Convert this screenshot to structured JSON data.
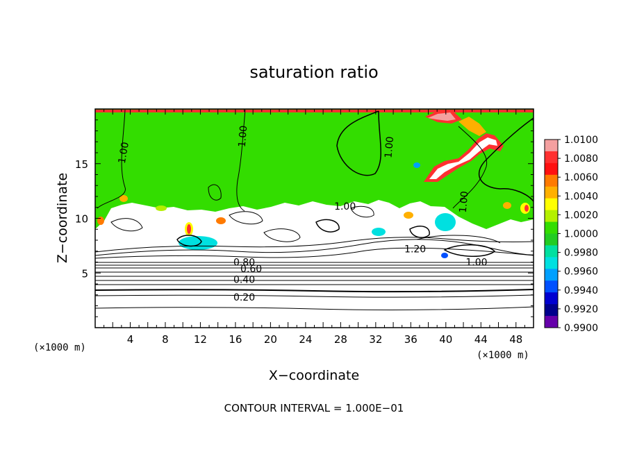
{
  "chart_data": {
    "type": "heatmap",
    "title": "saturation ratio",
    "xlabel": "X−coordinate",
    "ylabel": "Z−coordinate",
    "x_unit_label": "(×1000 m)",
    "y_unit_label": "(×1000 m)",
    "xlim": [
      0,
      50
    ],
    "ylim": [
      0,
      20
    ],
    "x_ticks": [
      4,
      8,
      12,
      16,
      20,
      24,
      28,
      32,
      36,
      40,
      44,
      48
    ],
    "y_ticks": [
      5,
      10,
      15
    ],
    "footer": "CONTOUR INTERVAL = 1.000E−01",
    "colorbar": {
      "labels": [
        "1.0100",
        "1.0080",
        "1.0060",
        "1.0040",
        "1.0020",
        "1.0000",
        "0.9980",
        "0.9960",
        "0.9940",
        "0.9920",
        "0.9900"
      ],
      "colors": [
        "#f4a0a0",
        "#ff3030",
        "#ff1010",
        "#ff7a00",
        "#ffb000",
        "#ffff00",
        "#b4f000",
        "#33dd00",
        "#22cc22",
        "#00e0a0",
        "#00e0e0",
        "#00a0ff",
        "#0050ff",
        "#0000d0",
        "#00008c",
        "#6600aa"
      ]
    },
    "contour_labels": [
      {
        "text": "1.00",
        "x": 3.2,
        "z": 16.0,
        "rotate": -80
      },
      {
        "text": "1.00",
        "x": 16.8,
        "z": 17.5,
        "rotate": -85
      },
      {
        "text": "1.00",
        "x": 33.5,
        "z": 16.5,
        "rotate": -85
      },
      {
        "text": "1.00",
        "x": 28.5,
        "z": 11.1,
        "rotate": 0
      },
      {
        "text": "1.00",
        "x": 42.0,
        "z": 11.5,
        "rotate": -85
      },
      {
        "text": "1.20",
        "x": 36.5,
        "z": 7.2,
        "rotate": 0
      },
      {
        "text": "1.00",
        "x": 43.5,
        "z": 6.0,
        "rotate": 0
      },
      {
        "text": "0.80",
        "x": 17.0,
        "z": 6.0,
        "rotate": 0
      },
      {
        "text": "0.60",
        "x": 17.8,
        "z": 5.4,
        "rotate": 0
      },
      {
        "text": "0.40",
        "x": 17.0,
        "z": 4.4,
        "rotate": 0
      },
      {
        "text": "0.20",
        "x": 17.0,
        "z": 2.8,
        "rotate": 0
      }
    ],
    "regions": {
      "green_saturated_from_z": 10.5,
      "white_supersaturated_z": [
        6.5,
        10.5
      ],
      "stratified_below_z": 6.5
    },
    "colors": {
      "field": "#33dd00",
      "frame": "#000000",
      "contour": "#000000"
    }
  }
}
